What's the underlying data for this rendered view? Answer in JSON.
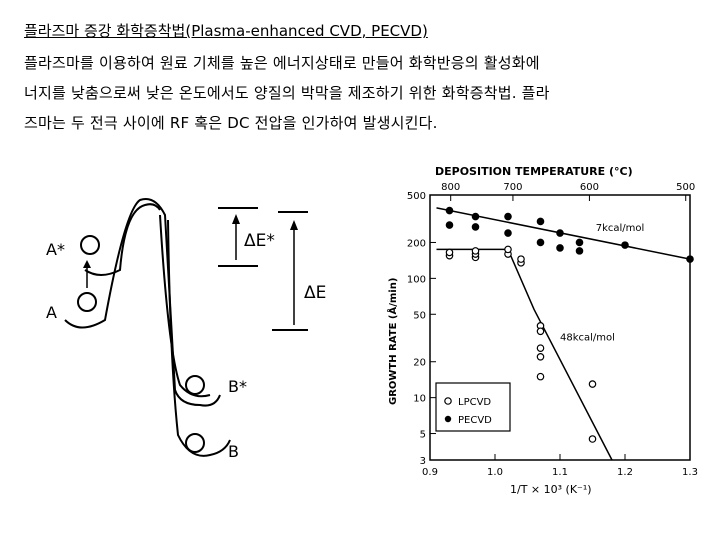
{
  "slide": {
    "title": "플라즈마 증강 화학증착법(Plasma-enhanced CVD, PECVD)",
    "body_lines": [
      "플라즈마를 이용하여 원료 기체를 높은 에너지상태로 만들어 화학반응의 활성화에",
      "너지를 낮춤으로써 낮은 온도에서도 양질의 박막을 제조하기 위한 화학증착법. 플라",
      "즈마는 두 전극 사이에 RF 혹은 DC 전압을 인가하여 발생시킨다."
    ]
  },
  "energy_diagram": {
    "state_a_star": "A*",
    "state_a": "A",
    "state_b_star": "B*",
    "state_b": "B",
    "delta_e_star": "ΔE*",
    "delta_e": "ΔE"
  },
  "chart_data": {
    "type": "scatter",
    "top_axis_title": "DEPOSITION TEMPERATURE (°C)",
    "top_ticks": [
      "800",
      "700",
      "600",
      "500"
    ],
    "ylabel": "GROWTH RATE (Å/min)",
    "y_scale": "log",
    "ylim": [
      3,
      500
    ],
    "y_ticks": [
      "500",
      "200",
      "100",
      "50",
      "20",
      "10",
      "5",
      "3"
    ],
    "xlabel": "1/T × 10³ (K⁻¹)",
    "xlim": [
      0.9,
      1.3
    ],
    "x_ticks": [
      "0.9",
      "1.0",
      "1.1",
      "1.2",
      "1.3"
    ],
    "series": [
      {
        "name": "LPCVD",
        "marker": "open-circle",
        "points": [
          [
            0.93,
            155
          ],
          [
            0.93,
            165
          ],
          [
            0.97,
            150
          ],
          [
            0.97,
            160
          ],
          [
            0.97,
            170
          ],
          [
            1.02,
            160
          ],
          [
            1.02,
            175
          ],
          [
            1.04,
            135
          ],
          [
            1.04,
            145
          ],
          [
            1.07,
            40
          ],
          [
            1.07,
            36
          ],
          [
            1.07,
            26
          ],
          [
            1.07,
            22
          ],
          [
            1.07,
            15
          ],
          [
            1.15,
            13
          ],
          [
            1.15,
            4.5
          ]
        ],
        "fit_line": [
          [
            0.91,
            175
          ],
          [
            1.02,
            175
          ],
          [
            1.06,
            55
          ],
          [
            1.18,
            3
          ]
        ]
      },
      {
        "name": "PECVD",
        "marker": "filled-circle",
        "points": [
          [
            0.93,
            370
          ],
          [
            0.93,
            280
          ],
          [
            0.97,
            330
          ],
          [
            0.97,
            270
          ],
          [
            1.02,
            330
          ],
          [
            1.02,
            240
          ],
          [
            1.07,
            300
          ],
          [
            1.07,
            200
          ],
          [
            1.1,
            240
          ],
          [
            1.1,
            180
          ],
          [
            1.13,
            200
          ],
          [
            1.13,
            170
          ],
          [
            1.2,
            190
          ],
          [
            1.3,
            145
          ]
        ],
        "fit_line": [
          [
            0.91,
            390
          ],
          [
            1.3,
            145
          ]
        ]
      }
    ],
    "annotations": [
      "7kcal/mol",
      "48kcal/mol"
    ],
    "legend_position": "bottom-left"
  }
}
